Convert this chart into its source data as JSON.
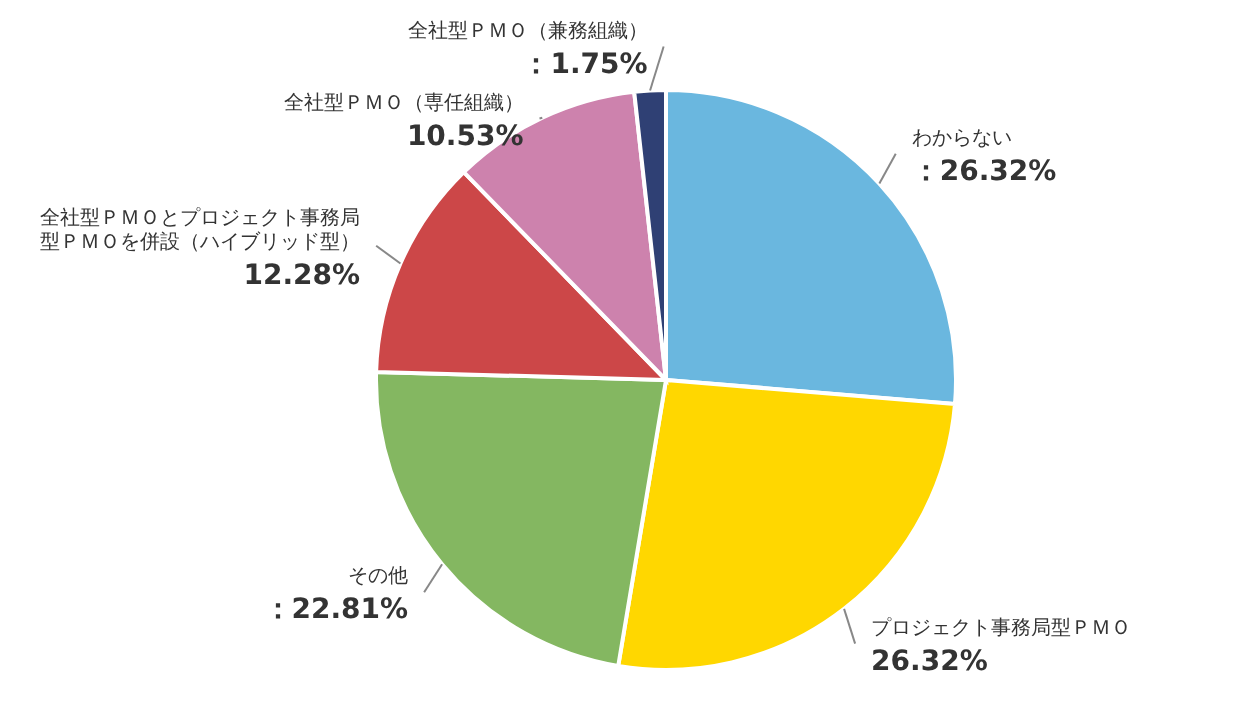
{
  "chart_data": {
    "type": "pie",
    "categories": [
      "わからない",
      "プロジェクト事務局型ＰＭＯ",
      "その他",
      "全社型ＰＭＯとプロジェクト事務局型ＰＭＯを併設（ハイブリッド型）",
      "全社型ＰＭＯ（専任組織）",
      "全社型ＰＭＯ（兼務組織）"
    ],
    "values": [
      26.32,
      26.32,
      22.81,
      12.28,
      10.53,
      1.75
    ],
    "colors": [
      "#6ab7df",
      "#ffd700",
      "#84b761",
      "#cc4748",
      "#cd82ad",
      "#2f4074"
    ],
    "value_labels": [
      "：26.32%",
      "26.32%",
      "：22.81%",
      "12.28%",
      "10.53%",
      "：1.75%"
    ]
  }
}
